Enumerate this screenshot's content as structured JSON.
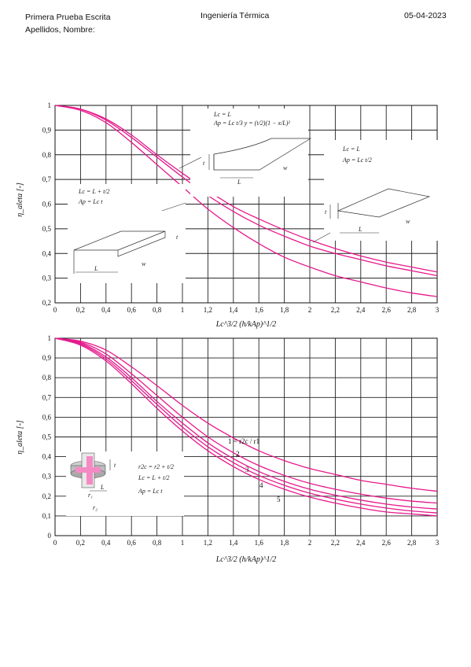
{
  "header": {
    "left_line1": "Primera Prueba Escrita",
    "left_line2": "Apellidos, Nombre:",
    "center": "Ingeniería Térmica",
    "right": "05-04-2023"
  },
  "chart_data": [
    {
      "type": "line",
      "ylabel": "η_aleta [-]",
      "xlabel": "Lc^3/2 (h/kAp)^1/2",
      "xlim": [
        0,
        3
      ],
      "ylim": [
        0.2,
        1
      ],
      "x_ticks": [
        "0",
        "0,2",
        "0,4",
        "0,6",
        "0,8",
        "1",
        "1,2",
        "1,4",
        "1,6",
        "1,8",
        "2",
        "2,2",
        "2,4",
        "2,6",
        "2,8",
        "3"
      ],
      "y_ticks": [
        "0,2",
        "0,3",
        "0,4",
        "0,5",
        "0,6",
        "0,7",
        "0,8",
        "0,9",
        "1"
      ],
      "x": [
        0,
        0.2,
        0.4,
        0.6,
        0.8,
        1.0,
        1.2,
        1.4,
        1.6,
        1.8,
        2.0,
        2.2,
        2.4,
        2.6,
        2.8,
        3.0
      ],
      "series": [
        {
          "values": [
            1,
            0.985,
            0.94,
            0.87,
            0.79,
            0.71,
            0.635,
            0.57,
            0.515,
            0.47,
            0.43,
            0.4,
            0.375,
            0.35,
            0.33,
            0.31
          ]
        },
        {
          "values": [
            1,
            0.985,
            0.945,
            0.88,
            0.8,
            0.725,
            0.655,
            0.59,
            0.54,
            0.495,
            0.455,
            0.42,
            0.39,
            0.365,
            0.345,
            0.325
          ]
        },
        {
          "values": [
            1,
            0.98,
            0.93,
            0.85,
            0.76,
            0.67,
            0.58,
            0.505,
            0.44,
            0.385,
            0.345,
            0.31,
            0.285,
            0.26,
            0.24,
            0.225
          ]
        }
      ],
      "insets": {
        "parabolic_line1": "Lc = L",
        "parabolic_line2": "Ap = Lc t/3   y = (t/2)(1 − x/L)²",
        "rectangular_line1": "Lc = L + t/2",
        "rectangular_line2": "Ap = Lc t",
        "triangular_line1": "Lc = L",
        "triangular_line2": "Ap = Lc t/2"
      },
      "grid": true,
      "color": "#e6198c"
    },
    {
      "type": "line",
      "ylabel": "η_aleta [-]",
      "xlabel": "Lc^3/2 (h/kAp)^1/2",
      "xlim": [
        0,
        3
      ],
      "ylim": [
        0,
        1
      ],
      "x_ticks": [
        "0",
        "0,2",
        "0,4",
        "0,6",
        "0,8",
        "1",
        "1,2",
        "1,4",
        "1,6",
        "1,8",
        "2",
        "2,2",
        "2,4",
        "2,6",
        "2,8",
        "3"
      ],
      "y_ticks": [
        "0",
        "0,1",
        "0,2",
        "0,3",
        "0,4",
        "0,5",
        "0,6",
        "0,7",
        "0,8",
        "0,9",
        "1"
      ],
      "x": [
        0,
        0.2,
        0.4,
        0.6,
        0.8,
        1.0,
        1.2,
        1.4,
        1.6,
        1.8,
        2.0,
        2.2,
        2.4,
        2.6,
        2.8,
        3.0
      ],
      "series": [
        {
          "name": "1",
          "values": [
            1,
            0.985,
            0.94,
            0.855,
            0.76,
            0.66,
            0.57,
            0.495,
            0.43,
            0.38,
            0.34,
            0.31,
            0.28,
            0.26,
            0.24,
            0.225
          ]
        },
        {
          "name": "2",
          "values": [
            1,
            0.98,
            0.92,
            0.82,
            0.71,
            0.6,
            0.5,
            0.42,
            0.355,
            0.305,
            0.265,
            0.235,
            0.21,
            0.19,
            0.175,
            0.165
          ]
        },
        {
          "name": "3",
          "values": [
            1,
            0.975,
            0.905,
            0.8,
            0.68,
            0.57,
            0.47,
            0.39,
            0.325,
            0.275,
            0.235,
            0.205,
            0.18,
            0.16,
            0.145,
            0.135
          ]
        },
        {
          "name": "4",
          "values": [
            1,
            0.97,
            0.895,
            0.785,
            0.665,
            0.55,
            0.45,
            0.37,
            0.305,
            0.255,
            0.215,
            0.185,
            0.16,
            0.14,
            0.125,
            0.115
          ]
        },
        {
          "name": "5",
          "values": [
            1,
            0.965,
            0.885,
            0.77,
            0.645,
            0.53,
            0.43,
            0.35,
            0.285,
            0.235,
            0.195,
            0.165,
            0.14,
            0.12,
            0.11,
            0.1
          ]
        }
      ],
      "curve_label_1": "1 = r2c / r1",
      "insets": {
        "annular_line1": "r2c = r2 + t/2",
        "annular_line2": "Lc = L + t/2",
        "annular_line3": "Ap = Lc t"
      },
      "grid": true,
      "color": "#e6198c"
    }
  ]
}
